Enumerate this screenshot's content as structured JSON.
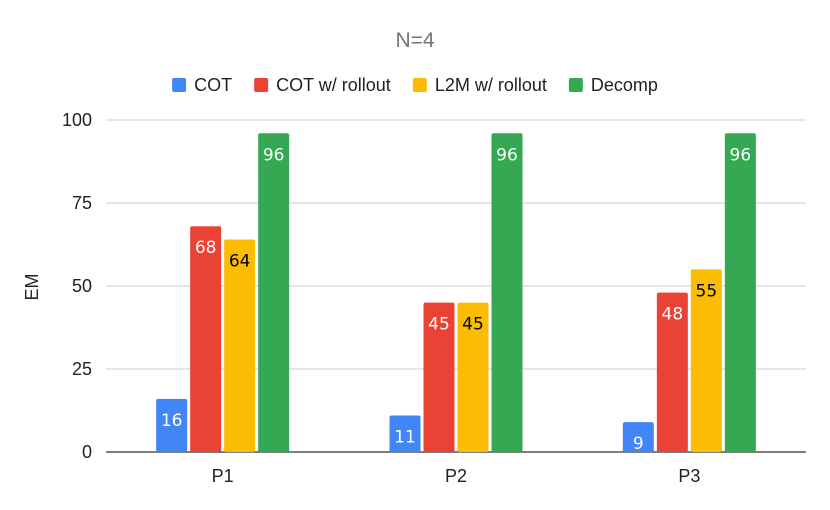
{
  "chart_data": {
    "type": "bar",
    "title": "N=4",
    "xlabel": "",
    "ylabel": "EM",
    "ylim": [
      0,
      100
    ],
    "yticks": [
      0,
      25,
      50,
      75,
      100
    ],
    "grid": true,
    "legend_position": "top",
    "categories": [
      "P1",
      "P2",
      "P3"
    ],
    "series": [
      {
        "name": "COT",
        "color": "#4285f4",
        "label_color": "#ffffff",
        "values": [
          16,
          11,
          9
        ]
      },
      {
        "name": "COT w/ rollout",
        "color": "#ea4335",
        "label_color": "#ffffff",
        "values": [
          68,
          45,
          48
        ]
      },
      {
        "name": "L2M w/ rollout",
        "color": "#fbbc04",
        "label_color": "#000000",
        "values": [
          64,
          45,
          55
        ]
      },
      {
        "name": "Decomp",
        "color": "#34a853",
        "label_color": "#ffffff",
        "values": [
          96,
          96,
          96
        ]
      }
    ]
  }
}
